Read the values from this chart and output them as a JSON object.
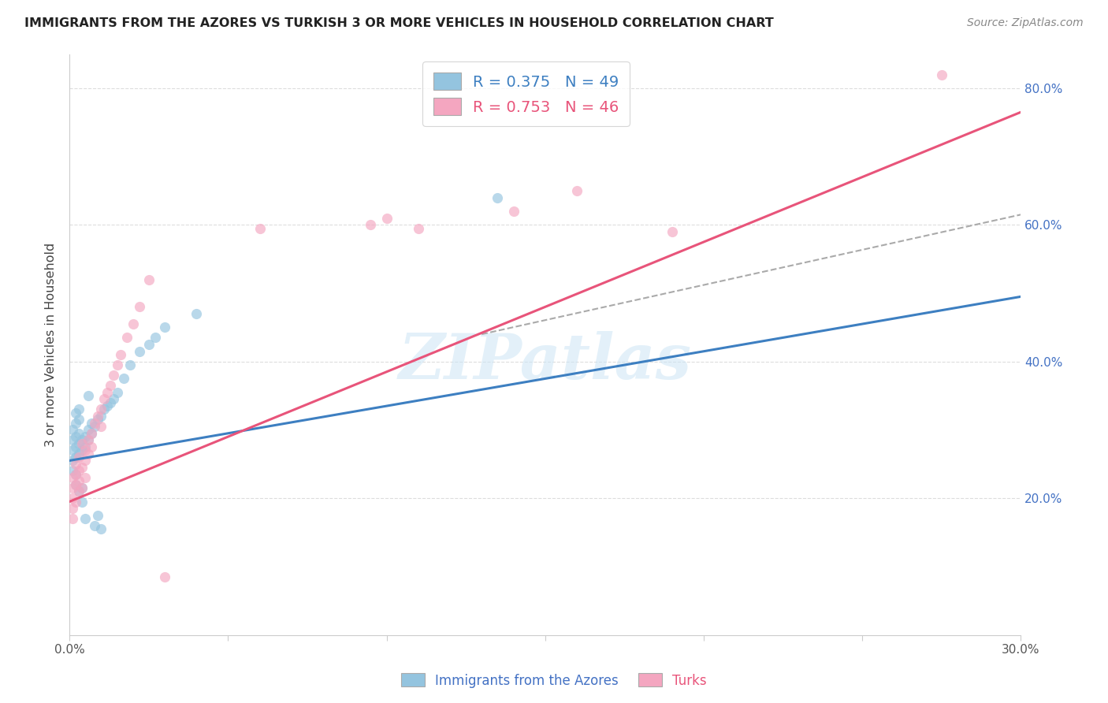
{
  "title": "IMMIGRANTS FROM THE AZORES VS TURKISH 3 OR MORE VEHICLES IN HOUSEHOLD CORRELATION CHART",
  "source": "Source: ZipAtlas.com",
  "ylabel": "3 or more Vehicles in Household",
  "xlim": [
    0.0,
    0.3
  ],
  "ylim": [
    0.0,
    0.85
  ],
  "blue_scatter_color": "#94c4df",
  "pink_scatter_color": "#f4a6c0",
  "blue_line_color": "#3d7fc1",
  "pink_line_color": "#e8547a",
  "dashed_line_color": "#aaaaaa",
  "legend_label1": "Immigrants from the Azores",
  "legend_label2": "Turks",
  "watermark": "ZIPatlas",
  "blue_line_x0": 0.0,
  "blue_line_y0": 0.255,
  "blue_line_x1": 0.3,
  "blue_line_y1": 0.495,
  "pink_line_x0": 0.0,
  "pink_line_y0": 0.195,
  "pink_line_x1": 0.3,
  "pink_line_y1": 0.765,
  "dash_line_x0": 0.13,
  "dash_line_y0": 0.44,
  "dash_line_x1": 0.3,
  "dash_line_y1": 0.615,
  "azores_x": [
    0.001,
    0.001,
    0.001,
    0.001,
    0.001,
    0.002,
    0.002,
    0.002,
    0.002,
    0.002,
    0.002,
    0.002,
    0.003,
    0.003,
    0.003,
    0.003,
    0.003,
    0.003,
    0.004,
    0.004,
    0.004,
    0.004,
    0.005,
    0.005,
    0.005,
    0.006,
    0.006,
    0.006,
    0.007,
    0.007,
    0.008,
    0.008,
    0.009,
    0.009,
    0.01,
    0.01,
    0.011,
    0.012,
    0.013,
    0.014,
    0.015,
    0.017,
    0.019,
    0.022,
    0.025,
    0.027,
    0.03,
    0.04,
    0.135
  ],
  "azores_y": [
    0.255,
    0.27,
    0.285,
    0.3,
    0.24,
    0.26,
    0.275,
    0.29,
    0.31,
    0.325,
    0.235,
    0.22,
    0.265,
    0.28,
    0.295,
    0.315,
    0.33,
    0.21,
    0.27,
    0.285,
    0.215,
    0.195,
    0.275,
    0.29,
    0.17,
    0.285,
    0.3,
    0.35,
    0.295,
    0.31,
    0.305,
    0.16,
    0.315,
    0.175,
    0.32,
    0.155,
    0.33,
    0.335,
    0.34,
    0.345,
    0.355,
    0.375,
    0.395,
    0.415,
    0.425,
    0.435,
    0.45,
    0.47,
    0.64
  ],
  "turks_x": [
    0.001,
    0.001,
    0.001,
    0.001,
    0.001,
    0.002,
    0.002,
    0.002,
    0.002,
    0.003,
    0.003,
    0.003,
    0.003,
    0.004,
    0.004,
    0.004,
    0.005,
    0.005,
    0.005,
    0.006,
    0.006,
    0.007,
    0.007,
    0.008,
    0.009,
    0.01,
    0.01,
    0.011,
    0.012,
    0.013,
    0.014,
    0.015,
    0.016,
    0.018,
    0.02,
    0.022,
    0.025,
    0.03,
    0.06,
    0.095,
    0.1,
    0.11,
    0.14,
    0.16,
    0.19,
    0.275
  ],
  "turks_y": [
    0.215,
    0.23,
    0.2,
    0.185,
    0.17,
    0.22,
    0.235,
    0.25,
    0.195,
    0.24,
    0.225,
    0.26,
    0.21,
    0.245,
    0.28,
    0.215,
    0.255,
    0.27,
    0.23,
    0.265,
    0.285,
    0.275,
    0.295,
    0.31,
    0.32,
    0.33,
    0.305,
    0.345,
    0.355,
    0.365,
    0.38,
    0.395,
    0.41,
    0.435,
    0.455,
    0.48,
    0.52,
    0.085,
    0.595,
    0.6,
    0.61,
    0.595,
    0.62,
    0.65,
    0.59,
    0.82
  ]
}
